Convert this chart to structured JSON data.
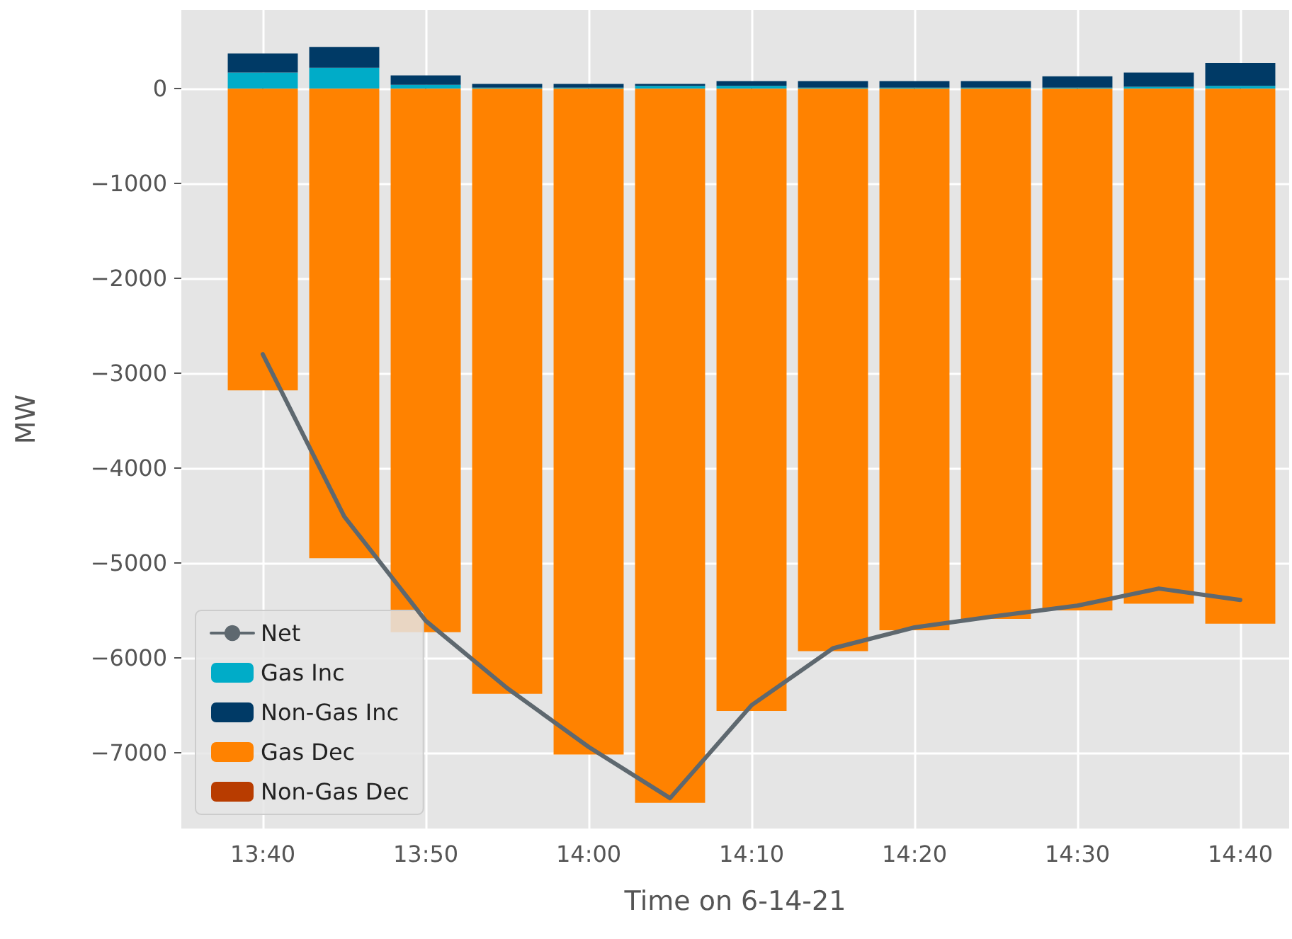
{
  "chart_data": {
    "type": "bar",
    "stacked": true,
    "xlabel": "Time on 6-14-21",
    "ylabel": "MW",
    "x": [
      "--06-14T13:40",
      "--06-14T13:45",
      "--06-14T13:50",
      "--06-14T13:55",
      "--06-14T14:00",
      "--06-14T14:05",
      "--06-14T14:10",
      "--06-14T14:15",
      "--06-14T14:20",
      "--06-14T14:25",
      "--06-14T14:30",
      "--06-14T14:35",
      "--06-14T14:40"
    ],
    "series": [
      {
        "name": "Net",
        "type": "line",
        "color": "#5e686f",
        "values": [
          -2800,
          -4510,
          -5610,
          -6320,
          -6940,
          -7480,
          -6500,
          -5900,
          -5680,
          -5560,
          -5450,
          -5270,
          -5390
        ]
      },
      {
        "name": "Gas Inc",
        "color": "#00acc8",
        "values": [
          170,
          220,
          40,
          10,
          10,
          30,
          30,
          10,
          10,
          10,
          10,
          20,
          30
        ]
      },
      {
        "name": "Non-Gas Inc",
        "color": "#003a66",
        "values": [
          200,
          220,
          100,
          40,
          40,
          20,
          50,
          70,
          70,
          70,
          120,
          150,
          240
        ]
      },
      {
        "name": "Gas Dec",
        "color": "#ff8200",
        "values": [
          -3180,
          -4950,
          -5730,
          -6380,
          -7020,
          -7530,
          -6560,
          -5930,
          -5710,
          -5590,
          -5500,
          -5430,
          -5640
        ]
      },
      {
        "name": "Non-Gas Dec",
        "color": "#b83c00",
        "values": [
          0,
          0,
          0,
          0,
          0,
          0,
          0,
          null,
          0,
          0,
          0,
          0,
          0
        ]
      }
    ],
    "xlim": [
      "--06-14T13:35",
      "--06-14T14:43"
    ],
    "xticks": [
      {
        "value": "--06-14T13:40",
        "label": "13:40"
      },
      {
        "value": "--06-14T13:50",
        "label": "13:50"
      },
      {
        "value": "--06-14T14:00",
        "label": "14:00"
      },
      {
        "value": "--06-14T14:10",
        "label": "14:10"
      },
      {
        "value": "--06-14T14:20",
        "label": "14:20"
      },
      {
        "value": "--06-14T14:30",
        "label": "14:30"
      },
      {
        "value": "--06-14T14:40",
        "label": "14:40"
      }
    ],
    "ylim": [
      -7800,
      830
    ],
    "yticks": [
      {
        "value": -7000,
        "label": "−7000"
      },
      {
        "value": -6000,
        "label": "−6000"
      },
      {
        "value": -5000,
        "label": "−5000"
      },
      {
        "value": -4000,
        "label": "−4000"
      },
      {
        "value": -3000,
        "label": "−3000"
      },
      {
        "value": -2000,
        "label": "−2000"
      },
      {
        "value": -1000,
        "label": "−1000"
      },
      0
    ],
    "grid": true,
    "legend": "bottom left",
    "line_style": "solid",
    "marker": "none"
  }
}
